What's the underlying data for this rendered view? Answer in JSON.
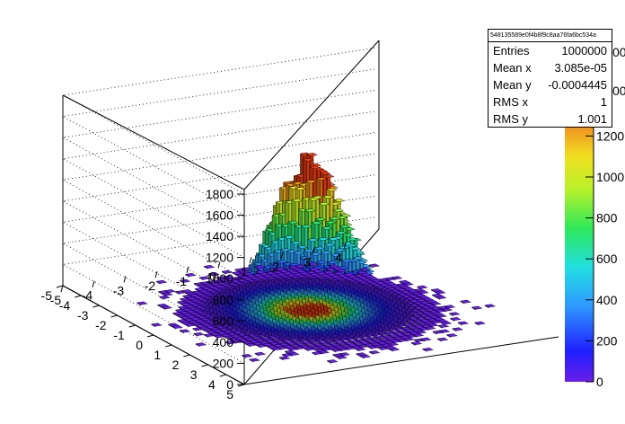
{
  "chart_data": {
    "type": "lego",
    "title": "",
    "xlabel": "",
    "ylabel": "",
    "zlabel": "",
    "xlim": [
      -5,
      5
    ],
    "ylim": [
      -5,
      5
    ],
    "zlim": [
      0,
      1800
    ],
    "x_ticks": [
      "-5",
      "-4",
      "-3",
      "-2",
      "-1",
      "0",
      "1",
      "2",
      "3",
      "4"
    ],
    "y_ticks": [
      "5",
      "4",
      "3",
      "2",
      "1",
      "0",
      "-1",
      "-2",
      "-3",
      "-4",
      "-5"
    ],
    "z_ticks": [
      "0",
      "200",
      "400",
      "600",
      "800",
      "1000",
      "1200",
      "1400",
      "1600",
      "1800"
    ],
    "peak_z": 1400,
    "distribution": "2D Gaussian, mean (0, 0), sigma 1, 100 x 100 bins",
    "grid": true,
    "palette": "rainbow",
    "palette_axis": {
      "ticks": [
        "0",
        "200",
        "400",
        "600",
        "800",
        "1000",
        "1200"
      ],
      "top_label_partial": "1200"
    },
    "partial_top_labels": [
      "00",
      "00"
    ],
    "stats": {
      "title": "548135589e0f4b8f9c8aa76fa6bc534a",
      "rows": [
        {
          "label": "Entries",
          "value": "1000000"
        },
        {
          "label": "Mean x",
          "value": "3.085e-05"
        },
        {
          "label": "Mean y",
          "value": "-0.0004445"
        },
        {
          "label": "RMS x",
          "value": "1"
        },
        {
          "label": "RMS y",
          "value": "1.001"
        }
      ]
    }
  }
}
